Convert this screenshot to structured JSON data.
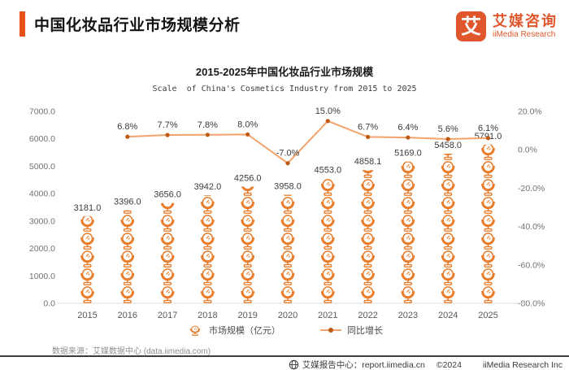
{
  "header": {
    "title": "中国化妆品行业市场规模分析",
    "logo": {
      "mark": "艾",
      "name_cn": "艾媒咨询",
      "name_en": "iiMedia Research"
    }
  },
  "chart_data": {
    "type": "bar",
    "title_cn": "2015-2025年中国化妆品行业市场规模",
    "title_en": "Scale  of China's Cosmetics Industry from 2015 to 2025",
    "categories": [
      "2015",
      "2016",
      "2017",
      "2018",
      "2019",
      "2020",
      "2021",
      "2022",
      "2023",
      "2024",
      "2025"
    ],
    "series": [
      {
        "name": "市场规模（亿元）",
        "type": "pictogram-bar",
        "axis": "left",
        "values": [
          3181.0,
          3396.0,
          3656.0,
          3942.0,
          4256.0,
          3958.0,
          4553.0,
          4858.1,
          5169.0,
          5458.0,
          5791.0
        ],
        "labels": [
          "3181.0",
          "3396.0",
          "3656.0",
          "3942.0",
          "4256.0",
          "3958.0",
          "4553.0",
          "4858.1",
          "5169.0",
          "5458.0",
          "5791.0"
        ],
        "color": "#E87E2D"
      },
      {
        "name": "同比增长",
        "type": "line",
        "axis": "right",
        "x_start_index": 1,
        "values": [
          6.8,
          7.7,
          7.8,
          8.0,
          -7.0,
          15.0,
          6.7,
          6.4,
          5.6,
          6.1
        ],
        "labels": [
          "6.8%",
          "7.7%",
          "7.8%",
          "8.0%",
          "-7.0%",
          "15.0%",
          "6.7%",
          "6.4%",
          "5.6%",
          "6.1%"
        ],
        "line_color": "#F2A36B",
        "dot_color": "#BE5A12"
      }
    ],
    "left_axis": {
      "min": 0,
      "max": 7000,
      "ticks": [
        "7000.0",
        "6000.0",
        "5000.0",
        "4000.0",
        "3000.0",
        "2000.0",
        "1000.0",
        "0.0"
      ]
    },
    "right_axis": {
      "min": -80,
      "max": 20,
      "ticks": [
        "20.0%",
        "0.0%",
        "-20.0%",
        "-40.0%",
        "-60.0%",
        "-80.0%"
      ]
    },
    "grid": false,
    "legend_position": "bottom"
  },
  "source_note": "数据来源：艾媒数据中心 (data.iimedia.com)",
  "footer": {
    "report_center": "艾媒报告中心：report.iimedia.cn",
    "copyright": "©2024",
    "company": "iiMedia Research Inc"
  },
  "colors": {
    "accent": "#E8501A",
    "logo": "#E0572E",
    "bar_icon": "#E87E2D",
    "growth_line": "#F2A36B",
    "growth_dot": "#BE5A12"
  }
}
